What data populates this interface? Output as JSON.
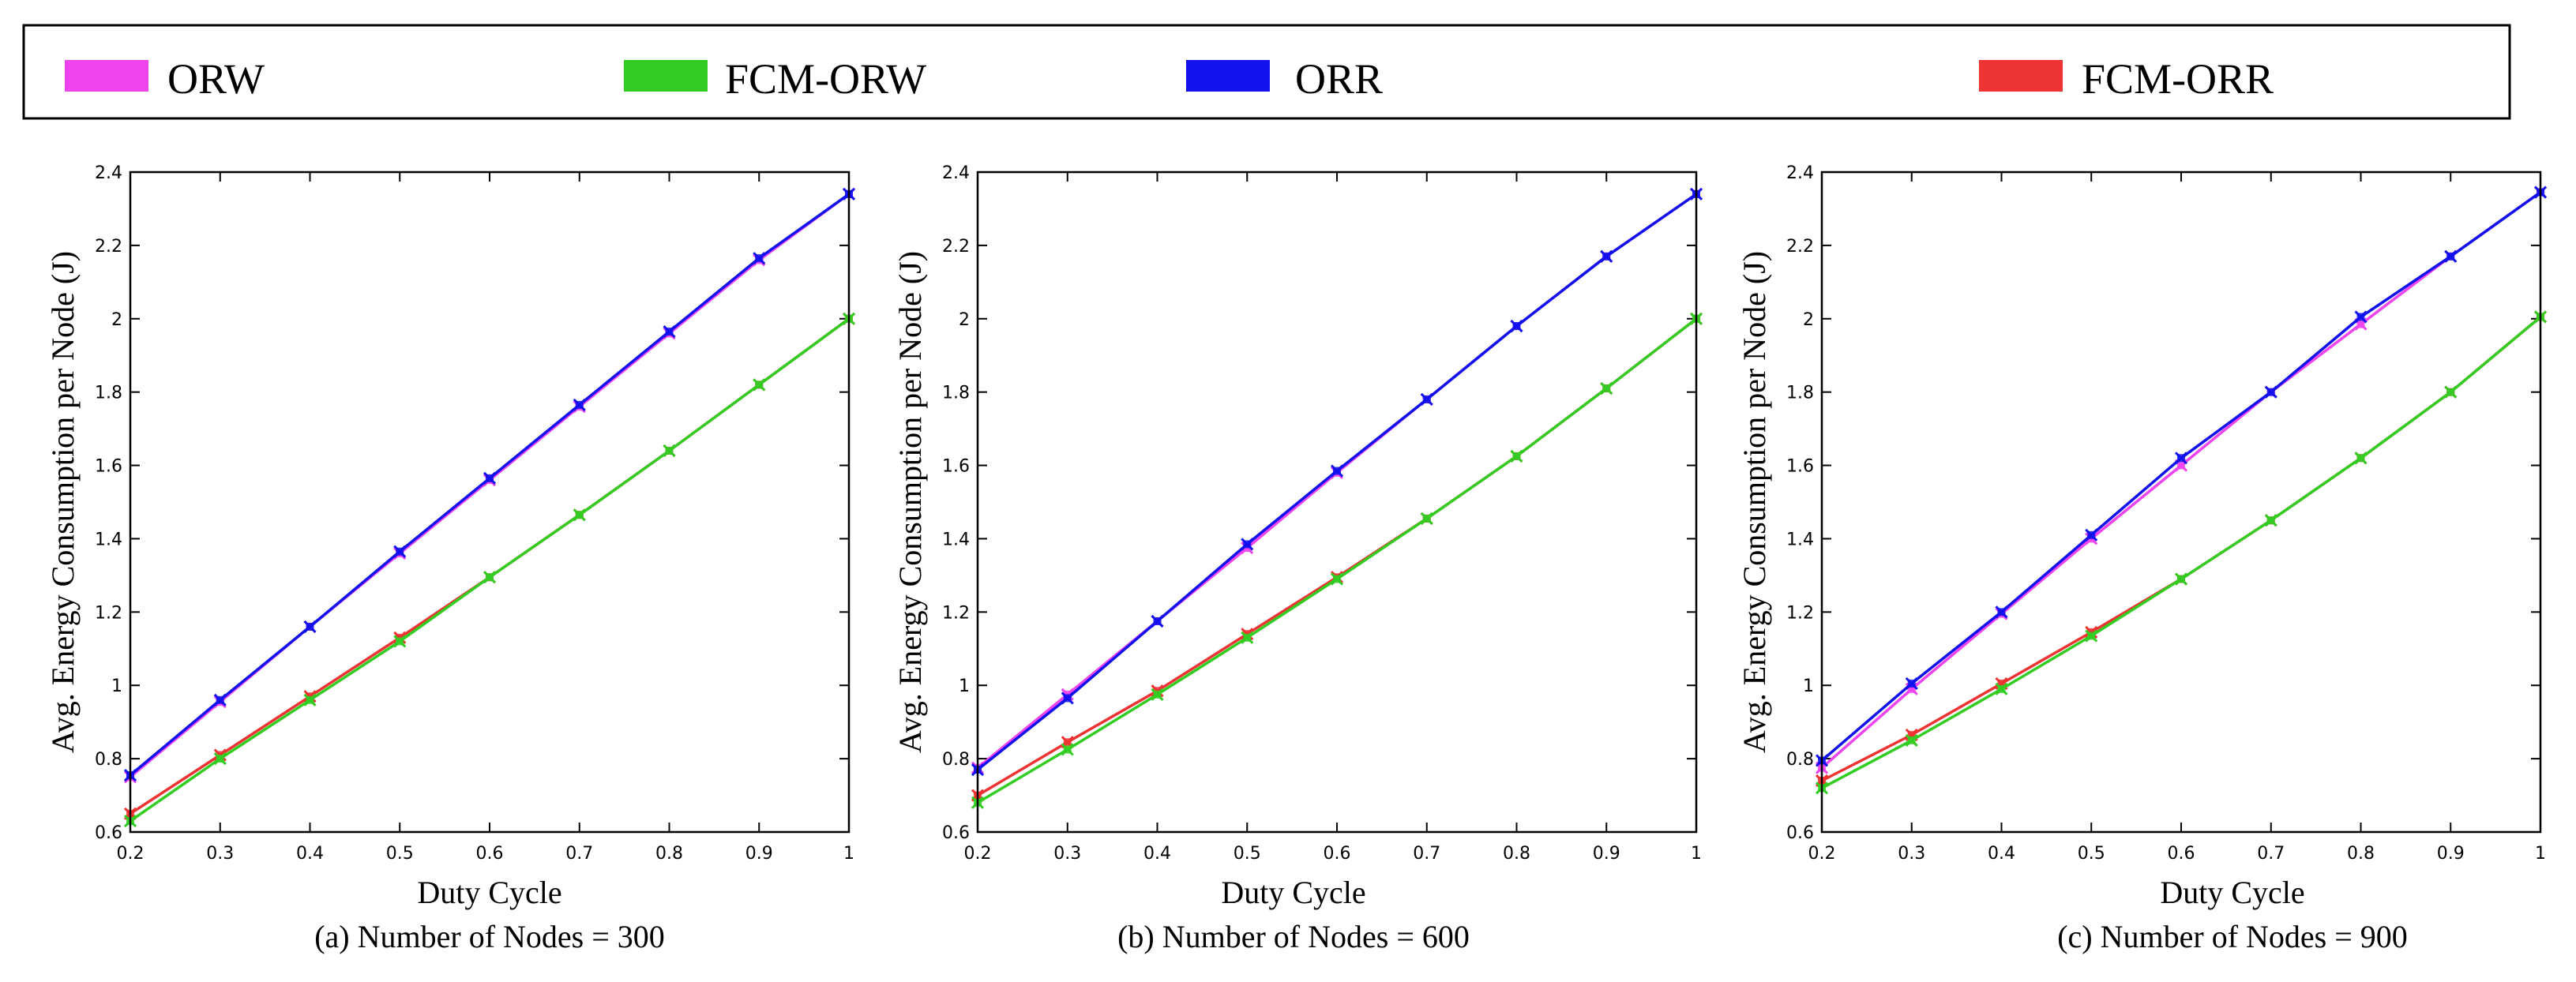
{
  "legend": [
    {
      "label": "ORW",
      "color": "#ee44ee"
    },
    {
      "label": "FCM-ORW",
      "color": "#33cc22"
    },
    {
      "label": "ORR",
      "color": "#1111ee"
    },
    {
      "label": "FCM-ORR",
      "color": "#ee3333"
    }
  ],
  "chart_data": [
    {
      "type": "line",
      "caption": "(a) Number of Nodes = 300",
      "xlabel": "Duty Cycle",
      "ylabel": "Avg. Energy Consumption per Node (J)",
      "xlim": [
        0.2,
        1
      ],
      "ylim": [
        0.6,
        2.4
      ],
      "x_ticks": [
        "0.2",
        "0.3",
        "0.4",
        "0.5",
        "0.6",
        "0.7",
        "0.8",
        "0.9",
        "1"
      ],
      "y_ticks": [
        "0.6",
        "0.8",
        "1",
        "1.2",
        "1.4",
        "1.6",
        "1.8",
        "2",
        "2.2",
        "2.4"
      ],
      "x": [
        0.2,
        0.3,
        0.4,
        0.5,
        0.6,
        0.7,
        0.8,
        0.9,
        1.0
      ],
      "series": [
        {
          "name": "ORW",
          "values": [
            0.75,
            0.955,
            1.16,
            1.36,
            1.56,
            1.76,
            1.96,
            2.16,
            2.34
          ]
        },
        {
          "name": "ORR",
          "values": [
            0.755,
            0.96,
            1.16,
            1.365,
            1.565,
            1.765,
            1.965,
            2.165,
            2.34
          ]
        },
        {
          "name": "FCM-ORR",
          "values": [
            0.65,
            0.81,
            0.97,
            1.13,
            1.295,
            1.465,
            1.64,
            1.82,
            2.0
          ]
        },
        {
          "name": "FCM-ORW",
          "values": [
            0.63,
            0.8,
            0.96,
            1.12,
            1.295,
            1.465,
            1.64,
            1.82,
            2.0
          ]
        }
      ]
    },
    {
      "type": "line",
      "caption": "(b) Number of Nodes = 600",
      "xlabel": "Duty Cycle",
      "ylabel": "Avg. Energy Consumption per Node (J)",
      "xlim": [
        0.2,
        1
      ],
      "ylim": [
        0.6,
        2.4
      ],
      "x_ticks": [
        "0.2",
        "0.3",
        "0.4",
        "0.5",
        "0.6",
        "0.7",
        "0.8",
        "0.9",
        "1"
      ],
      "y_ticks": [
        "0.6",
        "0.8",
        "1",
        "1.2",
        "1.4",
        "1.6",
        "1.8",
        "2",
        "2.2",
        "2.4"
      ],
      "x": [
        0.2,
        0.3,
        0.4,
        0.5,
        0.6,
        0.7,
        0.8,
        0.9,
        1.0
      ],
      "series": [
        {
          "name": "ORW",
          "values": [
            0.775,
            0.975,
            1.175,
            1.375,
            1.58,
            1.78,
            1.98,
            2.17,
            2.34
          ]
        },
        {
          "name": "ORR",
          "values": [
            0.77,
            0.965,
            1.175,
            1.385,
            1.585,
            1.78,
            1.98,
            2.17,
            2.34
          ]
        },
        {
          "name": "FCM-ORR",
          "values": [
            0.7,
            0.845,
            0.985,
            1.14,
            1.295,
            1.455,
            1.625,
            1.81,
            2.0
          ]
        },
        {
          "name": "FCM-ORW",
          "values": [
            0.68,
            0.825,
            0.975,
            1.13,
            1.29,
            1.455,
            1.625,
            1.81,
            2.0
          ]
        }
      ]
    },
    {
      "type": "line",
      "caption": "(c) Number of Nodes = 900",
      "xlabel": "Duty Cycle",
      "ylabel": "Avg. Energy Consumption per Node (J)",
      "xlim": [
        0.2,
        1
      ],
      "ylim": [
        0.6,
        2.4
      ],
      "x_ticks": [
        "0.2",
        "0.3",
        "0.4",
        "0.5",
        "0.6",
        "0.7",
        "0.8",
        "0.9",
        "1"
      ],
      "y_ticks": [
        "0.6",
        "0.8",
        "1",
        "1.2",
        "1.4",
        "1.6",
        "1.8",
        "2",
        "2.2",
        "2.4"
      ],
      "x": [
        0.2,
        0.3,
        0.4,
        0.5,
        0.6,
        0.7,
        0.8,
        0.9,
        1.0
      ],
      "series": [
        {
          "name": "ORW",
          "values": [
            0.775,
            0.99,
            1.195,
            1.4,
            1.6,
            1.8,
            1.985,
            2.17,
            2.345
          ]
        },
        {
          "name": "ORR",
          "values": [
            0.795,
            1.005,
            1.2,
            1.41,
            1.62,
            1.8,
            2.005,
            2.17,
            2.345
          ]
        },
        {
          "name": "FCM-ORR",
          "values": [
            0.74,
            0.865,
            1.005,
            1.145,
            1.29,
            1.45,
            1.62,
            1.8,
            2.005
          ]
        },
        {
          "name": "FCM-ORW",
          "values": [
            0.72,
            0.85,
            0.99,
            1.135,
            1.29,
            1.45,
            1.62,
            1.8,
            2.005
          ]
        }
      ]
    }
  ]
}
